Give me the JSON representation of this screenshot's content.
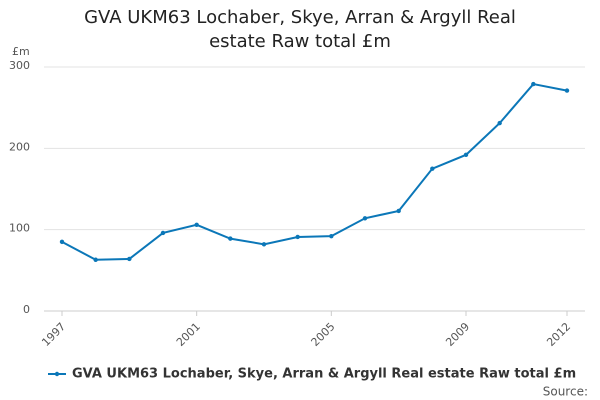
{
  "chart_data": {
    "type": "line",
    "title": "GVA UKM63 Lochaber, Skye, Arran & Argyll Real estate Raw total £m",
    "y_unit": "£m",
    "x": [
      1997,
      1998,
      1999,
      2000,
      2001,
      2002,
      2003,
      2004,
      2005,
      2006,
      2007,
      2008,
      2009,
      2010,
      2011,
      2012
    ],
    "series": [
      {
        "name": "GVA UKM63 Lochaber, Skye, Arran & Argyll Real estate Raw total £m",
        "color": "#0b77b8",
        "values": [
          85,
          63,
          64,
          96,
          106,
          89,
          82,
          91,
          92,
          114,
          123,
          175,
          192,
          231,
          279,
          271
        ]
      }
    ],
    "xlim": [
      1997,
      2012
    ],
    "xticks": [
      1997,
      2001,
      2005,
      2009,
      2012
    ],
    "ylim": [
      0,
      300
    ],
    "yticks": [
      0,
      100,
      200,
      300
    ],
    "grid": true,
    "legend": "bottom",
    "source": "Source:"
  }
}
